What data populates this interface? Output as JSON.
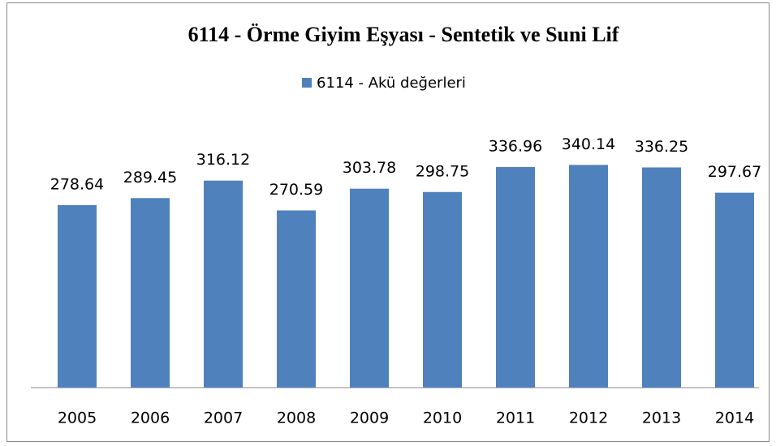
{
  "chart_data": {
    "type": "bar",
    "title": "6114 - Örme Giyim Eşyası - Sentetik ve Suni Lif",
    "categories": [
      "2005",
      "2006",
      "2007",
      "2008",
      "2009",
      "2010",
      "2011",
      "2012",
      "2013",
      "2014"
    ],
    "series": [
      {
        "name": "6114 - Akü değerleri",
        "color": "#4f81bd",
        "values": [
          278.64,
          289.45,
          316.12,
          270.59,
          303.78,
          298.75,
          336.96,
          340.14,
          336.25,
          297.67
        ]
      }
    ],
    "ylim": [
      0,
      400
    ],
    "legend": "top"
  }
}
